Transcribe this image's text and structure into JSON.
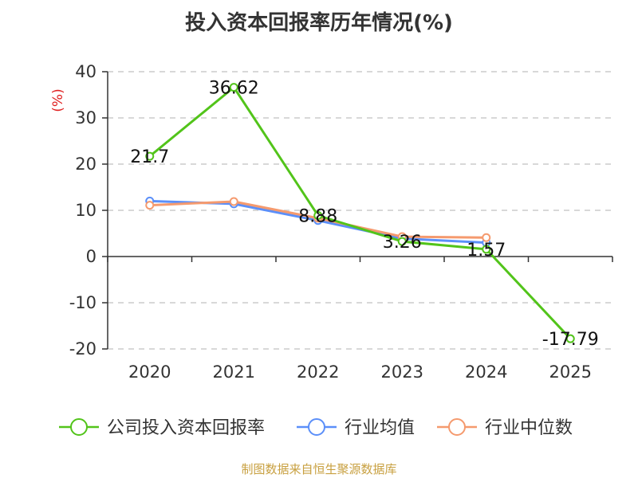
{
  "title": "投入资本回报率历年情况(%)",
  "source": "制图数据来自恒生聚源数据库",
  "chart_data": {
    "type": "line",
    "title": "投入资本回报率历年情况(%)",
    "ylabel": "(%)",
    "xlabel": "",
    "categories": [
      "2020",
      "2021",
      "2022",
      "2023",
      "2024",
      "2025"
    ],
    "ylim": [
      -20,
      40
    ],
    "yticks": [
      -20,
      -10,
      0,
      10,
      20,
      30,
      40
    ],
    "grid": true,
    "legend_position": "bottom",
    "series": [
      {
        "name": "公司投入资本回报率",
        "color": "#52c41a",
        "values": [
          21.7,
          36.62,
          8.88,
          3.26,
          1.57,
          -17.79
        ],
        "labels": [
          "21.7",
          "36.62",
          "8.88",
          "3.26",
          "1.57",
          "-17.79"
        ]
      },
      {
        "name": "行业均值",
        "color": "#5b8ff9",
        "values": [
          12.0,
          11.4,
          7.8,
          3.9,
          3.0,
          null
        ]
      },
      {
        "name": "行业中位数",
        "color": "#f59a6e",
        "values": [
          11.1,
          11.9,
          8.3,
          4.3,
          4.1,
          null
        ]
      }
    ]
  }
}
